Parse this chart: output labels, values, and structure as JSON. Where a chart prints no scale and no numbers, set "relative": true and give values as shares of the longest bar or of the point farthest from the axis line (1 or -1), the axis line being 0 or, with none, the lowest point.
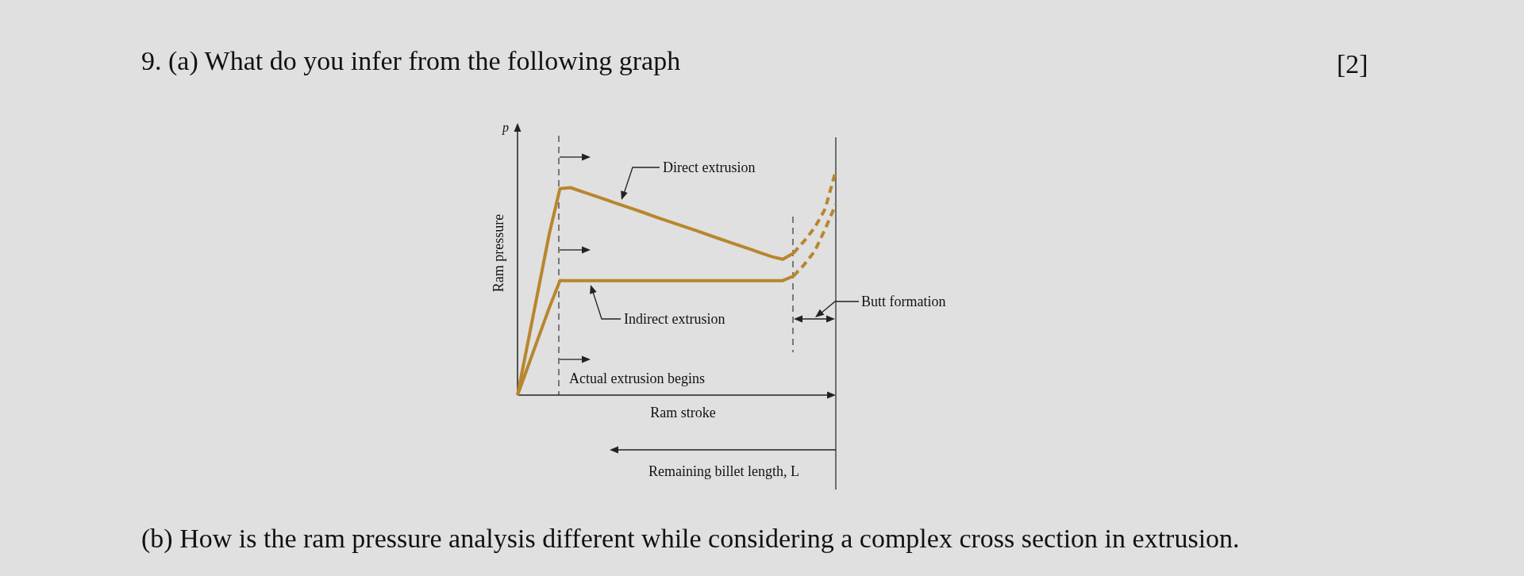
{
  "chart_data": {
    "type": "line",
    "title": "9. (a) What do you infer from the following graph",
    "xlabel": "Ram stroke",
    "ylabel": "Ram pressure",
    "relative": true,
    "categories": [
      null,
      null,
      null,
      null,
      null,
      null,
      null,
      null,
      null,
      null,
      null,
      null,
      null,
      null,
      null,
      null,
      null,
      null,
      null,
      null,
      null,
      null,
      null,
      null,
      null,
      null,
      null,
      null,
      null,
      null,
      null
    ],
    "annotations": [
      "[2]",
      "(b) How is the ram pressure analysis different while considering a complex cross section in extrusion.",
      "p",
      "Direct extrusion",
      "Indirect extrusion",
      "Actual extrusion begins",
      "Butt formation",
      "Remaining billet length, L"
    ],
    "series": [
      {
        "color": "#b8862e",
        "line_style": "solid",
        "values": [
          0,
          0.24,
          0.48,
          0.72,
          0.92,
          0.924,
          0.908,
          0.892,
          0.876,
          0.859,
          0.843,
          0.827,
          0.811,
          0.794,
          0.778,
          0.762,
          0.746,
          0.73,
          0.713,
          0.697,
          0.681,
          0.665,
          0.649,
          0.632,
          0.616,
          0.605,
          0.632,
          null,
          null,
          null,
          null
        ]
      },
      {
        "color": "#b8862e",
        "line_style": "dashed",
        "values": [
          null,
          null,
          null,
          null,
          null,
          null,
          null,
          null,
          null,
          null,
          null,
          null,
          null,
          null,
          null,
          null,
          null,
          null,
          null,
          null,
          null,
          null,
          null,
          null,
          null,
          null,
          0.632,
          0.685,
          0.745,
          0.83,
          1
        ]
      },
      {
        "color": "#b8862e",
        "line_style": "solid",
        "values": [
          0,
          0.13,
          0.26,
          0.39,
          0.51,
          0.51,
          0.51,
          0.51,
          0.51,
          0.51,
          0.51,
          0.51,
          0.51,
          0.51,
          0.51,
          0.51,
          0.51,
          0.51,
          0.51,
          0.51,
          0.51,
          0.51,
          0.51,
          0.51,
          0.51,
          0.51,
          0.53,
          null,
          null,
          null,
          null
        ]
      },
      {
        "color": "#b8862e",
        "line_style": "dashed",
        "values": [
          null,
          null,
          null,
          null,
          null,
          null,
          null,
          null,
          null,
          null,
          null,
          null,
          null,
          null,
          null,
          null,
          null,
          null,
          null,
          null,
          null,
          null,
          null,
          null,
          null,
          null,
          0.53,
          0.58,
          0.64,
          0.74,
          0.85
        ]
      }
    ]
  }
}
